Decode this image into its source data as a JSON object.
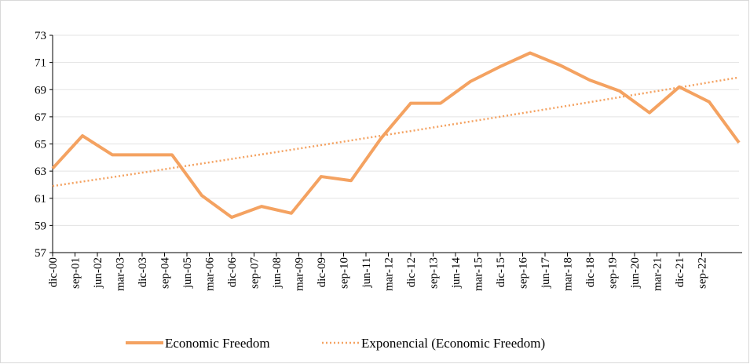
{
  "chart_data": {
    "type": "line",
    "x_labels": [
      "dic-00",
      "sep-01",
      "jun-02",
      "mar-03",
      "dic-03",
      "sep-04",
      "jun-05",
      "mar-06",
      "dic-06",
      "sep-07",
      "jun-08",
      "mar-09",
      "dic-09",
      "sep-10",
      "jun-11",
      "mar-12",
      "dic-12",
      "sep-13",
      "jun-14",
      "mar-15",
      "dic-15",
      "sep-16",
      "jun-17",
      "mar-18",
      "dic-18",
      "sep-19",
      "jun-20",
      "mar-21",
      "dic-21",
      "sep-22"
    ],
    "series": [
      {
        "name": "Economic Freedom",
        "color": "#f4a261",
        "style": "solid",
        "values": [
          63.2,
          65.6,
          64.2,
          64.2,
          64.2,
          61.2,
          59.6,
          60.4,
          59.9,
          62.6,
          62.3,
          65.4,
          68.0,
          68.0,
          69.6,
          70.7,
          71.7,
          70.8,
          69.7,
          68.9,
          67.3,
          69.2,
          68.1,
          65.1
        ]
      },
      {
        "name": "Exponencial (Economic Freedom)",
        "color": "#f4a261",
        "style": "dotted",
        "trend": "exponential",
        "values": [
          61.9,
          69.9
        ]
      }
    ],
    "ylim": [
      57,
      73
    ],
    "yticks": [
      57,
      59,
      61,
      63,
      65,
      67,
      69,
      71,
      73
    ],
    "grid": true
  }
}
